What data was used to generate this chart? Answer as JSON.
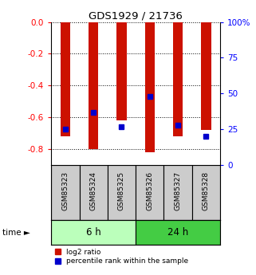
{
  "title": "GDS1929 / 21736",
  "samples": [
    "GSM85323",
    "GSM85324",
    "GSM85325",
    "GSM85326",
    "GSM85327",
    "GSM85328"
  ],
  "log2_ratios": [
    -0.72,
    -0.8,
    -0.62,
    -0.82,
    -0.72,
    -0.68
  ],
  "percentile_ranks": [
    25,
    37,
    27,
    48,
    28,
    20
  ],
  "groups": [
    {
      "label": "6 h",
      "indices": [
        0,
        1,
        2
      ],
      "color": "#bbffbb"
    },
    {
      "label": "24 h",
      "indices": [
        3,
        4,
        5
      ],
      "color": "#44cc44"
    }
  ],
  "bar_color": "#cc1100",
  "percentile_color": "#0000cc",
  "ylim_left": [
    -0.9,
    0.0
  ],
  "ylim_right": [
    0,
    100
  ],
  "yticks_left": [
    0.0,
    -0.2,
    -0.4,
    -0.6,
    -0.8
  ],
  "yticks_right": [
    0,
    25,
    50,
    75,
    100
  ],
  "bar_width": 0.35,
  "background_color": "#ffffff",
  "label_bg": "#cccccc",
  "legend_entries": [
    "log2 ratio",
    "percentile rank within the sample"
  ]
}
